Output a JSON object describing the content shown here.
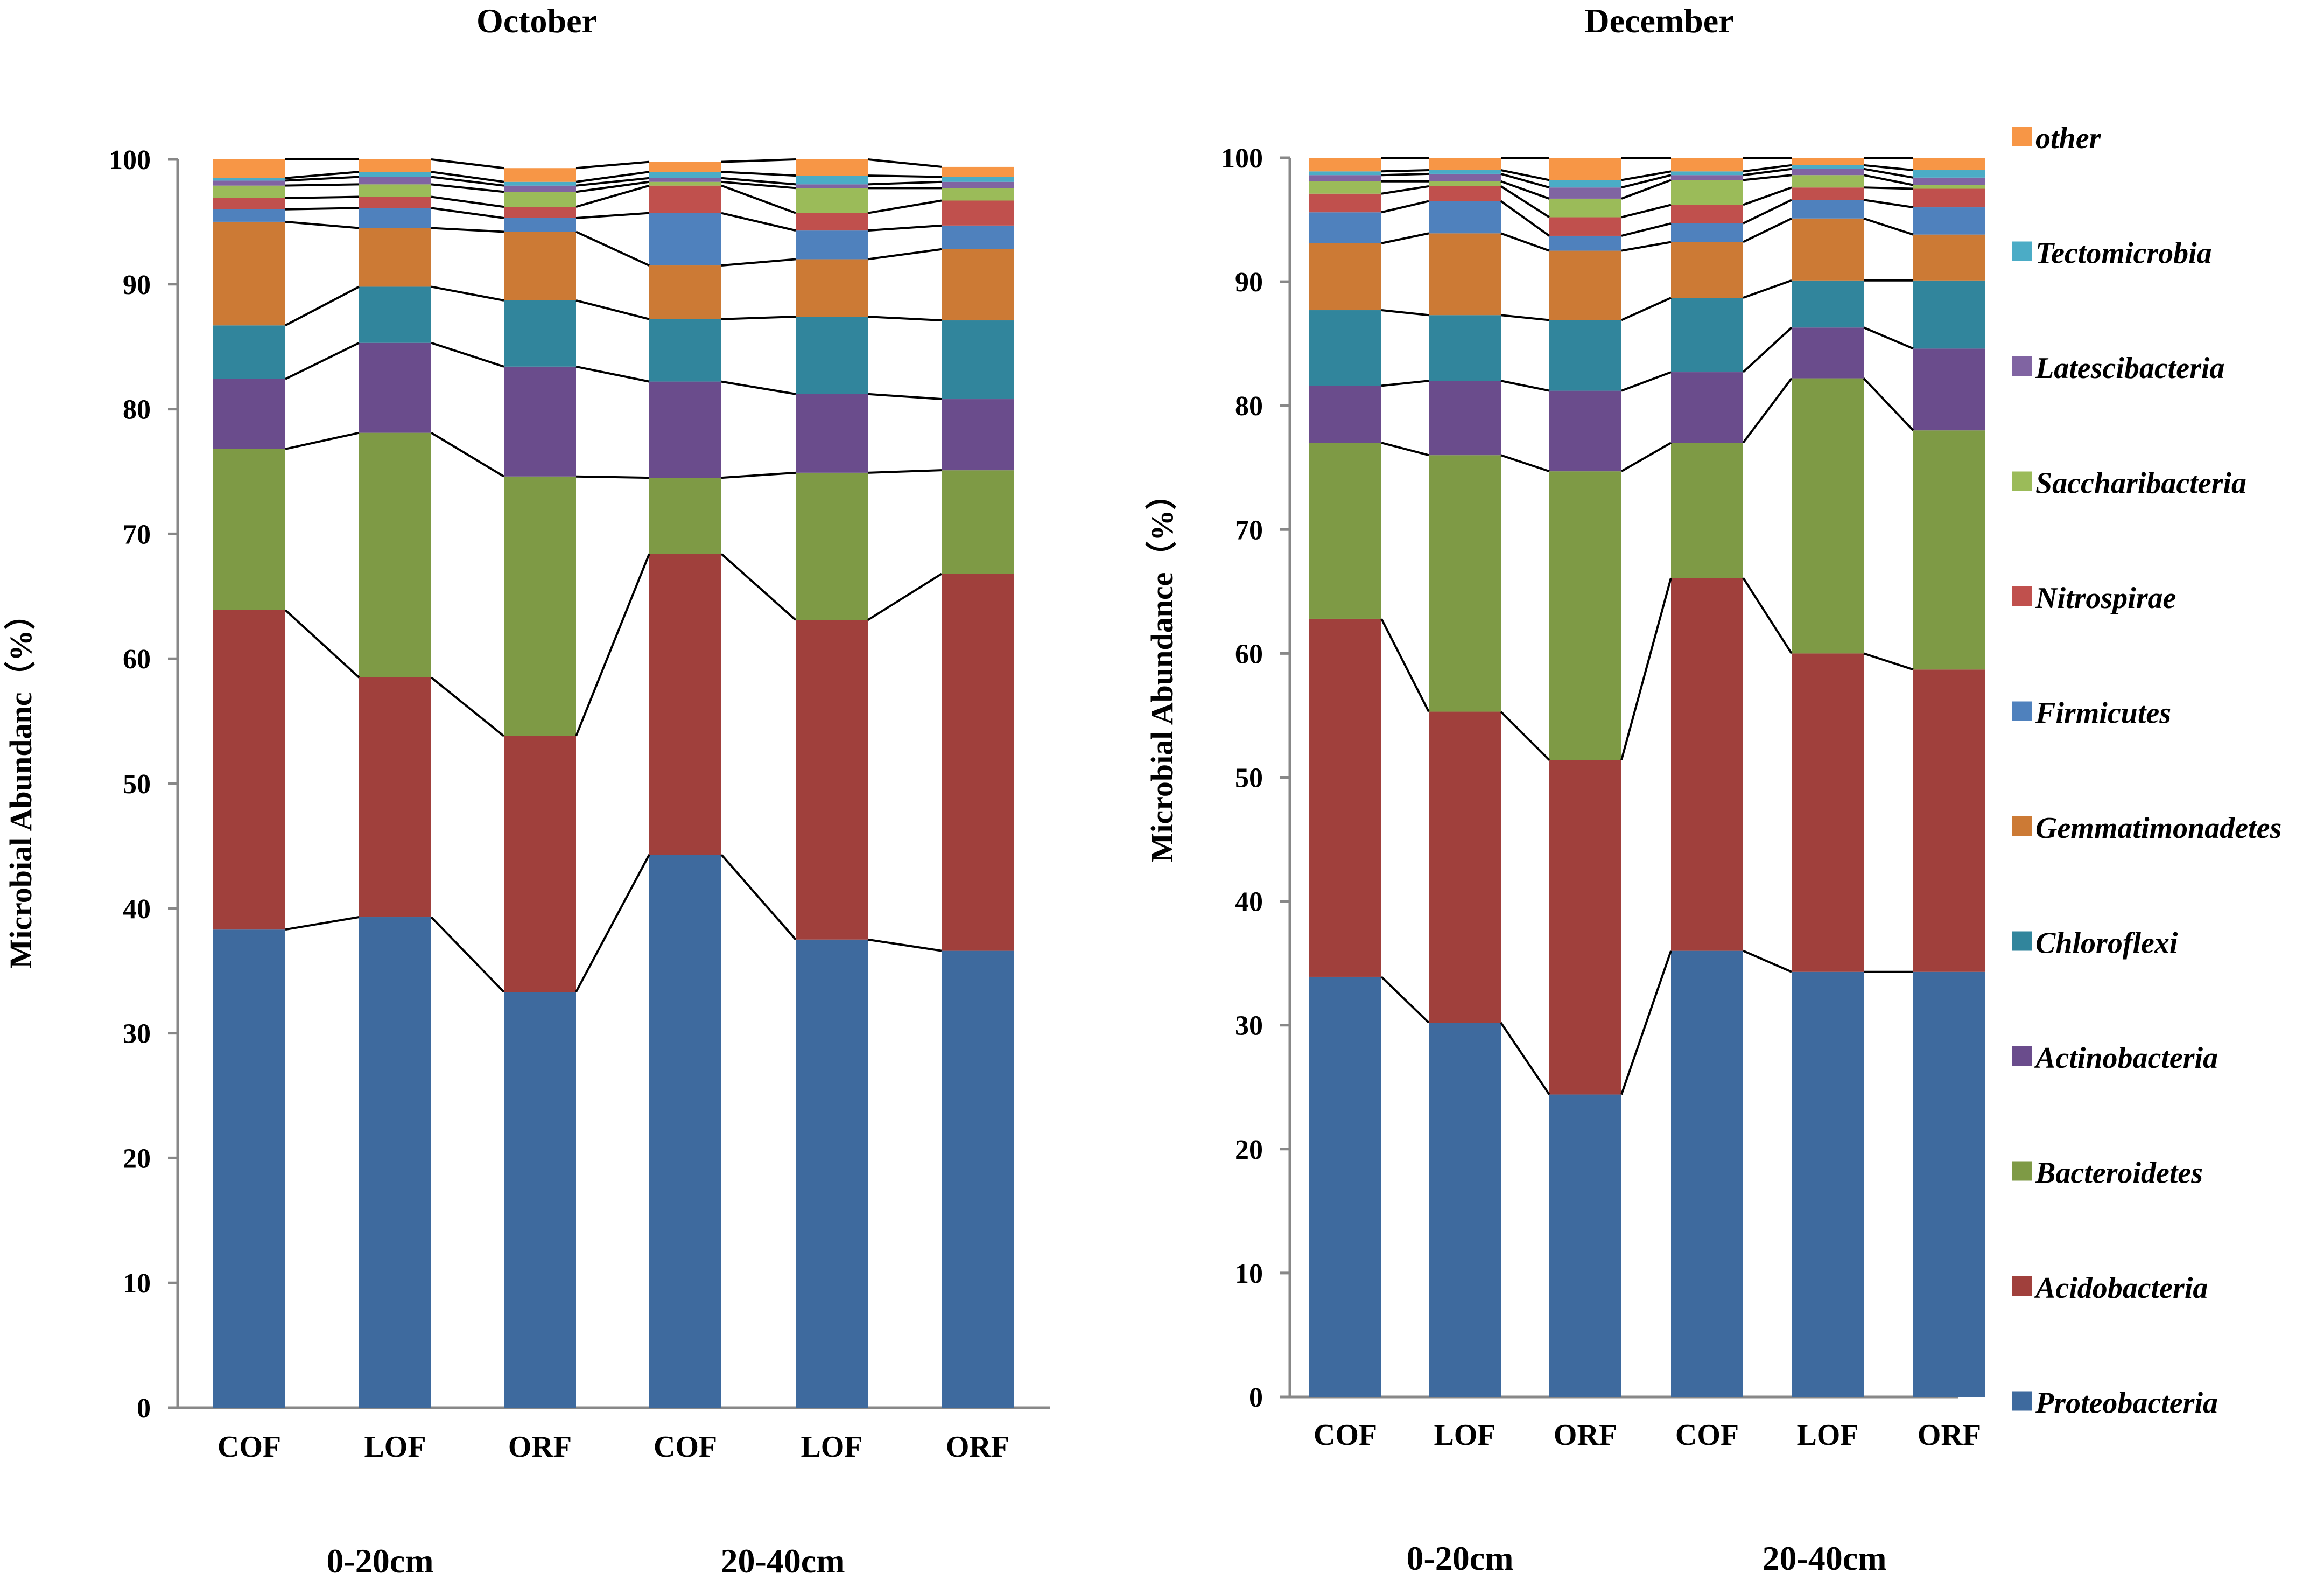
{
  "chart_data": [
    {
      "type": "stacked-bar",
      "title": "October",
      "ylabel": "Microbial Abundanc（%）",
      "ylim": [
        0,
        100
      ],
      "yticks": [
        "0",
        "10",
        "20",
        "30",
        "40",
        "50",
        "60",
        "70",
        "80",
        "90",
        "100"
      ],
      "categories": [
        "COF",
        "LOF",
        "ORF",
        "COF",
        "LOF",
        "ORF"
      ],
      "groups": [
        "0-20cm",
        "20-40cm"
      ],
      "series": [
        {
          "name": "Proteobacteria",
          "values": [
            38.3,
            39.3,
            33.3,
            44.3,
            37.5,
            36.6
          ]
        },
        {
          "name": "Acidobacteria",
          "values": [
            25.6,
            19.2,
            20.5,
            24.1,
            25.6,
            30.2
          ]
        },
        {
          "name": "Bacteroidetes",
          "values": [
            12.9,
            19.6,
            20.8,
            6.1,
            11.8,
            8.3
          ]
        },
        {
          "name": "Actinobacteria",
          "values": [
            5.6,
            7.2,
            8.8,
            7.7,
            6.3,
            5.7
          ]
        },
        {
          "name": "Chloroflexi",
          "values": [
            4.3,
            4.5,
            5.3,
            5.0,
            6.2,
            6.3
          ]
        },
        {
          "name": "Gemmatimonadetes",
          "values": [
            8.3,
            4.7,
            5.5,
            4.3,
            4.6,
            5.7
          ]
        },
        {
          "name": "Firmicutes",
          "values": [
            1.0,
            1.6,
            1.1,
            4.2,
            2.3,
            1.9
          ]
        },
        {
          "name": "Nitrospirae",
          "values": [
            0.9,
            0.9,
            0.9,
            2.2,
            1.4,
            2.0
          ]
        },
        {
          "name": "Saccharibacteria",
          "values": [
            1.0,
            1.0,
            1.2,
            0.3,
            2.0,
            1.0
          ]
        },
        {
          "name": "Latescibacteria",
          "values": [
            0.4,
            0.6,
            0.5,
            0.3,
            0.3,
            0.5
          ]
        },
        {
          "name": "Tectomicrobia",
          "values": [
            0.2,
            0.4,
            0.3,
            0.5,
            0.7,
            0.4
          ]
        },
        {
          "name": "other",
          "values": [
            1.5,
            1.0,
            1.1,
            0.8,
            1.3,
            0.8
          ]
        }
      ]
    },
    {
      "type": "stacked-bar",
      "title": "December",
      "ylabel": "Microbial Abundance（%）",
      "ylim": [
        0,
        100
      ],
      "yticks": [
        "0",
        "10",
        "20",
        "30",
        "40",
        "50",
        "60",
        "70",
        "80",
        "90",
        "100"
      ],
      "categories": [
        "COF",
        "LOF",
        "ORF",
        "COF",
        "LOF",
        "ORF"
      ],
      "groups": [
        "0-20cm",
        "20-40cm"
      ],
      "series": [
        {
          "name": "Proteobacteria",
          "values": [
            33.9,
            30.2,
            24.4,
            36.0,
            34.3,
            34.3
          ]
        },
        {
          "name": "Acidobacteria",
          "values": [
            28.9,
            25.1,
            27.0,
            30.1,
            25.7,
            24.4
          ]
        },
        {
          "name": "Bacteroidetes",
          "values": [
            14.2,
            20.7,
            23.3,
            10.9,
            22.2,
            19.3
          ]
        },
        {
          "name": "Actinobacteria",
          "values": [
            4.6,
            6.0,
            6.5,
            5.7,
            4.1,
            6.6
          ]
        },
        {
          "name": "Chloroflexi",
          "values": [
            6.1,
            5.3,
            5.7,
            6.0,
            3.8,
            5.5
          ]
        },
        {
          "name": "Gemmatimonadetes",
          "values": [
            5.4,
            6.6,
            5.6,
            4.5,
            5.0,
            3.7
          ]
        },
        {
          "name": "Firmicutes",
          "values": [
            2.5,
            2.6,
            1.2,
            1.5,
            1.5,
            2.2
          ]
        },
        {
          "name": "Nitrospirae",
          "values": [
            1.5,
            1.2,
            1.5,
            1.5,
            1.0,
            1.5
          ]
        },
        {
          "name": "Saccharibacteria",
          "values": [
            1.0,
            0.4,
            1.5,
            2.0,
            1.0,
            0.3
          ]
        },
        {
          "name": "Latescibacteria",
          "values": [
            0.5,
            0.6,
            0.9,
            0.4,
            0.5,
            0.6
          ]
        },
        {
          "name": "Tectomicrobia",
          "values": [
            0.3,
            0.3,
            0.6,
            0.3,
            0.3,
            0.6
          ]
        },
        {
          "name": "other",
          "values": [
            1.1,
            1.0,
            1.8,
            1.1,
            0.6,
            1.0
          ]
        }
      ]
    }
  ],
  "legend": [
    {
      "name": "other",
      "color": "#F79646"
    },
    {
      "name": "Tectomicrobia",
      "color": "#4BACC6"
    },
    {
      "name": "Latescibacteria",
      "color": "#8064A2"
    },
    {
      "name": "Saccharibacteria",
      "color": "#9BBB59"
    },
    {
      "name": "Nitrospirae",
      "color": "#C0504D"
    },
    {
      "name": "Firmicutes",
      "color": "#4F81BD"
    },
    {
      "name": "Gemmatimonadetes",
      "color": "#CC7A35"
    },
    {
      "name": "Chloroflexi",
      "color": "#31859C"
    },
    {
      "name": "Actinobacteria",
      "color": "#6A4C8C"
    },
    {
      "name": "Bacteroidetes",
      "color": "#7E9A45"
    },
    {
      "name": "Acidobacteria",
      "color": "#A0403C"
    },
    {
      "name": "Proteobacteria",
      "color": "#3E6A9E"
    }
  ],
  "colors": {
    "Proteobacteria": "#3E6A9E",
    "Acidobacteria": "#A0403C",
    "Bacteroidetes": "#7E9A45",
    "Actinobacteria": "#6A4C8C",
    "Chloroflexi": "#31859C",
    "Gemmatimonadetes": "#CC7A35",
    "Firmicutes": "#4F81BD",
    "Nitrospirae": "#C0504D",
    "Saccharibacteria": "#9BBB59",
    "Latescibacteria": "#8064A2",
    "Tectomicrobia": "#4BACC6",
    "other": "#F79646",
    "axis": "#888888",
    "connector": "#000000"
  }
}
